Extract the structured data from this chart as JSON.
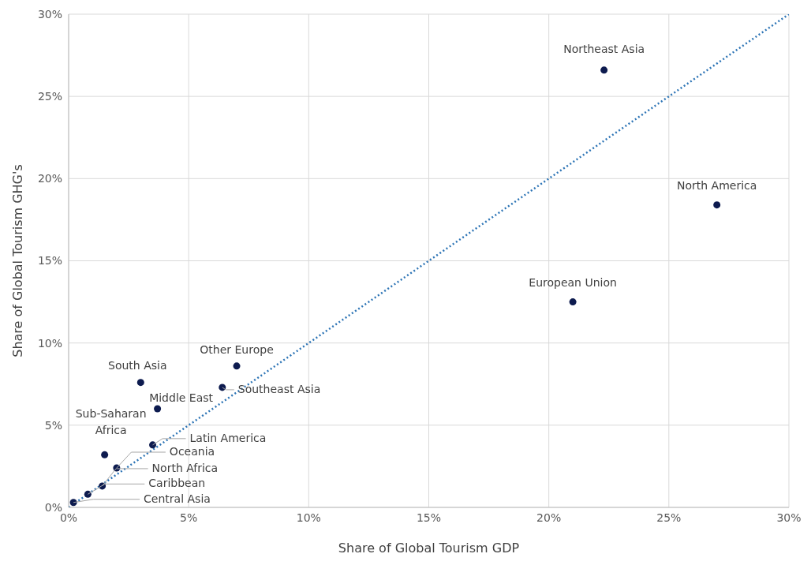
{
  "chart_data": {
    "type": "scatter",
    "xlabel": "Share of Global Tourism GDP",
    "ylabel": "Share of Global Tourism GHG's",
    "xlim": [
      0,
      30
    ],
    "ylim": [
      0,
      30
    ],
    "xticks": [
      {
        "value": 0,
        "label": "0%"
      },
      {
        "value": 5,
        "label": "5%"
      },
      {
        "value": 10,
        "label": "10%"
      },
      {
        "value": 15,
        "label": "15%"
      },
      {
        "value": 20,
        "label": "20%"
      },
      {
        "value": 25,
        "label": "25%"
      },
      {
        "value": 30,
        "label": "30%"
      }
    ],
    "yticks": [
      {
        "value": 0,
        "label": "0%"
      },
      {
        "value": 5,
        "label": "5%"
      },
      {
        "value": 10,
        "label": "10%"
      },
      {
        "value": 15,
        "label": "15%"
      },
      {
        "value": 20,
        "label": "20%"
      },
      {
        "value": 25,
        "label": "25%"
      },
      {
        "value": 30,
        "label": "30%"
      }
    ],
    "grid": true,
    "legend": false,
    "marker": "circle",
    "series": [
      {
        "type": "scatter",
        "color": "#0d1b4f",
        "x": [
          22.3,
          27.0,
          21.0,
          7.0,
          6.4,
          3.0,
          3.7,
          3.5,
          1.5,
          2.0,
          1.4,
          0.8,
          0.2
        ],
        "values": [
          26.6,
          18.4,
          12.5,
          8.6,
          7.3,
          7.6,
          6.0,
          3.8,
          3.2,
          2.4,
          1.3,
          0.8,
          0.3
        ]
      },
      {
        "type": "line",
        "color": "#2e75b6",
        "line_style": "dotted",
        "marker": "none",
        "x": [
          0,
          30
        ],
        "values": [
          0,
          30
        ]
      }
    ],
    "annotations": [
      {
        "text": "Northeast Asia",
        "x": 22.3,
        "y": 26.6
      },
      {
        "text": "North America",
        "x": 27.0,
        "y": 18.4
      },
      {
        "text": "European Union",
        "x": 21.0,
        "y": 12.5
      },
      {
        "text": "Other Europe",
        "x": 7.0,
        "y": 8.6
      },
      {
        "text": "Southeast Asia",
        "x": 6.4,
        "y": 7.3
      },
      {
        "text": "South Asia",
        "x": 3.0,
        "y": 7.6
      },
      {
        "text": "Middle East",
        "x": 3.7,
        "y": 6.0
      },
      {
        "text": "Latin America",
        "x": 3.5,
        "y": 3.8
      },
      {
        "text": "Sub-Saharan Africa",
        "x": 1.5,
        "y": 3.2
      },
      {
        "text": "Oceania",
        "x": 2.0,
        "y": 2.4
      },
      {
        "text": "North Africa",
        "x": 1.4,
        "y": 1.3
      },
      {
        "text": "Caribbean",
        "x": 0.8,
        "y": 0.8
      },
      {
        "text": "Central Asia",
        "x": 0.2,
        "y": 0.3
      }
    ]
  }
}
